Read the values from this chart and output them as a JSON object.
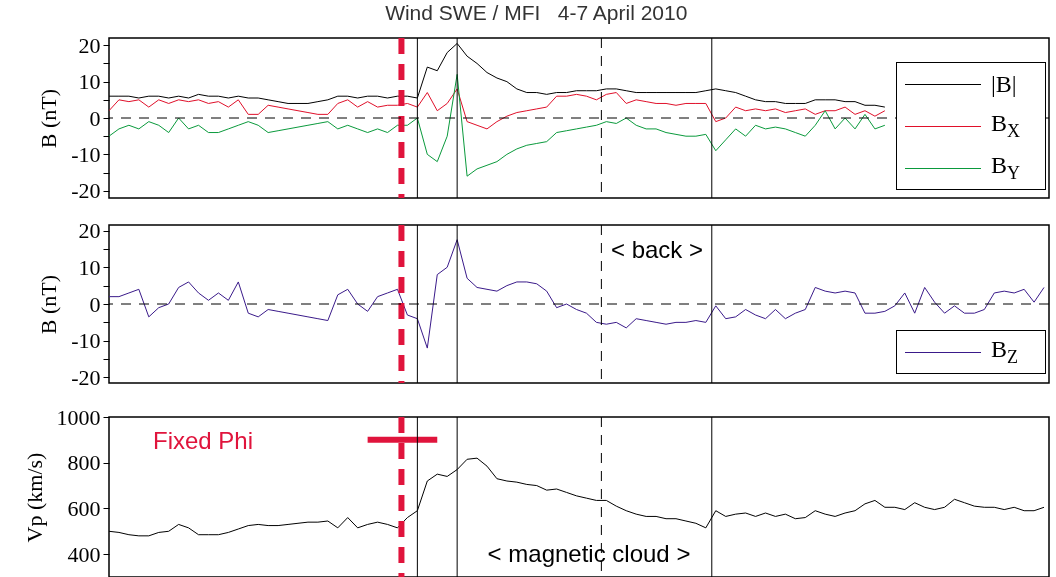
{
  "chart_data": [
    {
      "type": "line",
      "title": "Wind SWE / MFI   4-7 April 2010",
      "ylabel": "B (nT)",
      "tick_labels": "y",
      "legend": "right",
      "categories": [
        null,
        null,
        null,
        null,
        null,
        null,
        null,
        null,
        null,
        null,
        null,
        null,
        null,
        null,
        null,
        null,
        null,
        null,
        null,
        null,
        null,
        null,
        null,
        null,
        null,
        null,
        null,
        null,
        null,
        null,
        null,
        null,
        null,
        null,
        null,
        null,
        null,
        null,
        null,
        null,
        null,
        null,
        null,
        null,
        null,
        null,
        null,
        null,
        null,
        null,
        null,
        null,
        null,
        null,
        null,
        null,
        null,
        null,
        null,
        null,
        null,
        null,
        null,
        null,
        null,
        null,
        null,
        null,
        null,
        null,
        null,
        null,
        null,
        null,
        null,
        null,
        null,
        null,
        null,
        null,
        null,
        null,
        null,
        null,
        null,
        null,
        null,
        null,
        null,
        null,
        null,
        null,
        null,
        null,
        null
      ],
      "ylim": [
        -22,
        22
      ],
      "yticks": [
        -20,
        {
          "value": -15,
          "label": null
        },
        -10,
        {
          "value": -5,
          "label": null
        },
        0,
        {
          "value": 5,
          "label": null
        },
        10,
        {
          "value": 15,
          "label": null
        },
        20
      ],
      "series": [
        {
          "name": "|B|",
          "color": "#000000",
          "values": [
            6,
            6,
            6,
            5.5,
            6,
            6,
            5.5,
            6,
            5.5,
            6.5,
            6,
            6,
            5.5,
            6,
            5.5,
            5.5,
            5,
            4.5,
            4,
            4,
            4,
            4.5,
            5,
            6,
            6,
            5.5,
            6,
            6,
            5.5,
            6,
            6,
            5.5,
            14,
            13,
            18,
            20.5,
            17,
            15,
            12.5,
            11,
            10,
            8,
            7,
            7,
            6.5,
            7,
            7,
            7.5,
            7.5,
            7.5,
            8,
            8,
            7.5,
            7,
            7,
            7,
            7,
            7,
            7,
            7,
            7.5,
            8,
            7.5,
            7,
            6,
            5,
            4.5,
            4.5,
            4,
            4,
            4,
            5,
            5,
            5,
            4.5,
            4.5,
            3.5,
            3.5,
            3,
            null,
            null,
            null,
            null,
            null,
            null,
            null,
            null,
            null,
            null,
            null,
            null,
            null,
            null,
            null,
            null
          ]
        },
        {
          "name": "B$_{X}$",
          "color": "#e0102a",
          "values": [
            2,
            5,
            4.5,
            5,
            3,
            5,
            4,
            5,
            4.5,
            5,
            4,
            4.5,
            3,
            5,
            1,
            1,
            3.5,
            3,
            2.5,
            2,
            1.5,
            1,
            1,
            4,
            5,
            3,
            4.5,
            3,
            3.5,
            3.5,
            4,
            3,
            7,
            2,
            4,
            8,
            -1,
            -2,
            -3,
            -1,
            0.5,
            1.5,
            2,
            2.5,
            3,
            6,
            6,
            6.5,
            6,
            5,
            6.5,
            7,
            4,
            5,
            4.5,
            4,
            4,
            3.5,
            4,
            4,
            4,
            -1,
            0,
            3,
            2,
            2.5,
            2,
            2.5,
            1.5,
            2,
            2.5,
            1,
            2,
            2,
            3,
            1,
            2,
            0.5,
            2,
            null,
            null,
            null,
            null,
            null,
            null,
            null,
            null,
            null,
            null,
            null,
            null,
            null,
            null,
            null,
            null
          ]
        },
        {
          "name": "B$_{Y}$",
          "color": "#0a9a3c",
          "values": [
            -5,
            -3,
            -2,
            -3,
            -1,
            -2,
            -4,
            0,
            -3,
            -2,
            -4,
            -4,
            -3,
            -2,
            -1,
            -2,
            -4,
            -3.5,
            -3,
            -2.5,
            -2,
            -1.5,
            -1,
            -3,
            -2,
            -3,
            -4,
            -3,
            -4,
            -2,
            -2,
            0,
            -10,
            -12,
            -5,
            12,
            -16,
            -14,
            -13,
            -12,
            -10,
            -8.5,
            -7.5,
            -7,
            -6.5,
            -4,
            -3.5,
            -3,
            -2.5,
            -2,
            -1,
            -1.5,
            0,
            -2,
            -3,
            -3,
            -4,
            -4.5,
            -5,
            -5,
            -4.5,
            -9,
            -6,
            -3,
            -5,
            -2,
            -3,
            -2.5,
            -3,
            -4,
            -5,
            -2,
            2,
            -3,
            0,
            -3,
            1,
            -3,
            -2,
            null,
            null,
            null,
            null,
            null,
            null,
            null,
            null,
            null,
            null,
            null,
            null,
            null,
            null,
            null,
            null
          ]
        }
      ],
      "ref_lines": [
        {
          "axis": "y",
          "value": 0,
          "line_style": "dashed"
        }
      ]
    },
    {
      "type": "line",
      "ylabel": "B (nT)",
      "tick_labels": "y",
      "legend": "bottom right",
      "categories": [
        null,
        null,
        null,
        null,
        null,
        null,
        null,
        null,
        null,
        null,
        null,
        null,
        null,
        null,
        null,
        null,
        null,
        null,
        null,
        null,
        null,
        null,
        null,
        null,
        null,
        null,
        null,
        null,
        null,
        null,
        null,
        null,
        null,
        null,
        null,
        null,
        null,
        null,
        null,
        null,
        null,
        null,
        null,
        null,
        null,
        null,
        null,
        null,
        null,
        null,
        null,
        null,
        null,
        null,
        null,
        null,
        null,
        null,
        null,
        null,
        null,
        null,
        null,
        null,
        null,
        null,
        null,
        null,
        null,
        null,
        null,
        null,
        null,
        null,
        null,
        null,
        null,
        null,
        null,
        null,
        null,
        null,
        null,
        null,
        null,
        null,
        null,
        null,
        null,
        null,
        null,
        null,
        null,
        null,
        null
      ],
      "ylim": [
        -21.5,
        21.5
      ],
      "yticks": [
        -20,
        {
          "value": -15,
          "label": null
        },
        -10,
        {
          "value": -5,
          "label": null
        },
        0,
        {
          "value": 5,
          "label": null
        },
        10,
        {
          "value": 15,
          "label": null
        },
        20
      ],
      "series": [
        {
          "name": "B$_{Z}$",
          "color": "#3a1a8a",
          "values": [
            2,
            2,
            3,
            4,
            -3.5,
            -1,
            0,
            4.5,
            6,
            3,
            1,
            3,
            1,
            6,
            -2.5,
            -3.5,
            -1.5,
            -2,
            -2.5,
            -3,
            -3.5,
            -4,
            -4.5,
            2.5,
            4,
            0,
            -2,
            2,
            3,
            4,
            -3,
            -4,
            -12,
            8,
            10,
            17.5,
            7,
            4.5,
            4,
            3.5,
            5,
            6,
            6,
            5.5,
            3.5,
            -1,
            0,
            -1.5,
            -2.5,
            -5,
            -5.5,
            -5,
            -6.5,
            -4,
            -4.5,
            -5,
            -5.5,
            -5,
            -5,
            -4.5,
            -5,
            -0.5,
            -4,
            -3.5,
            -1.5,
            -3,
            -4,
            -1.5,
            -4,
            -2.5,
            -1.5,
            4.5,
            3.5,
            3,
            3.5,
            3,
            -2.5,
            -2.5,
            -2,
            -0.5,
            3,
            -2.5,
            4.5,
            0.5,
            -2.5,
            -0.5,
            -2.5,
            -2.5,
            -1.5,
            3,
            3.5,
            3,
            4,
            0.5,
            4.5
          ]
        }
      ],
      "ref_lines": [
        {
          "axis": "y",
          "value": 0,
          "line_style": "dashed"
        }
      ],
      "annotations": [
        "< back >"
      ]
    },
    {
      "type": "line",
      "ylabel": "Vp (km/s)",
      "tick_labels": "y",
      "categories": [
        null,
        null,
        null,
        null,
        null,
        null,
        null,
        null,
        null,
        null,
        null,
        null,
        null,
        null,
        null,
        null,
        null,
        null,
        null,
        null,
        null,
        null,
        null,
        null,
        null,
        null,
        null,
        null,
        null,
        null,
        null,
        null,
        null,
        null,
        null,
        null,
        null,
        null,
        null,
        null,
        null,
        null,
        null,
        null,
        null,
        null,
        null,
        null,
        null,
        null,
        null,
        null,
        null,
        null,
        null,
        null,
        null,
        null,
        null,
        null,
        null,
        null,
        null,
        null,
        null,
        null,
        null,
        null,
        null,
        null,
        null,
        null,
        null,
        null,
        null,
        null,
        null,
        null,
        null,
        null,
        null,
        null,
        null,
        null,
        null,
        null,
        null,
        null,
        null,
        null,
        null,
        null,
        null,
        null,
        null
      ],
      "ylim": [
        300,
        1000
      ],
      "yticks": [
        400,
        600,
        800,
        1000
      ],
      "series": [
        {
          "color": "#000000",
          "values": [
            500,
            495,
            485,
            480,
            480,
            495,
            500,
            530,
            515,
            485,
            485,
            485,
            495,
            510,
            525,
            530,
            525,
            525,
            530,
            535,
            540,
            540,
            545,
            515,
            560,
            515,
            530,
            540,
            530,
            515,
            560,
            590,
            720,
            750,
            740,
            770,
            815,
            820,
            785,
            730,
            720,
            715,
            705,
            700,
            680,
            685,
            670,
            655,
            645,
            635,
            635,
            610,
            590,
            575,
            565,
            565,
            555,
            555,
            545,
            535,
            515,
            590,
            565,
            575,
            580,
            565,
            580,
            565,
            575,
            555,
            560,
            590,
            575,
            565,
            580,
            590,
            620,
            635,
            605,
            605,
            595,
            625,
            605,
            595,
            605,
            640,
            625,
            610,
            605,
            605,
            595,
            605,
            590,
            590,
            605
          ]
        },
        {
          "color": "#e0143c",
          "values": [
            null,
            null,
            null,
            null,
            null,
            null,
            null,
            null,
            null,
            null,
            null,
            null,
            null,
            null,
            null,
            null,
            null,
            null,
            null,
            null,
            null,
            null,
            null,
            null,
            null,
            null,
            900,
            900,
            900,
            900,
            900,
            900,
            900,
            900,
            null,
            null,
            null,
            null,
            null,
            null,
            null,
            null,
            null,
            null,
            null,
            null,
            null,
            null,
            null,
            null,
            null,
            null,
            null,
            null,
            null,
            null,
            null,
            null,
            null,
            null,
            null,
            null,
            null,
            null,
            null,
            null,
            null,
            null,
            null,
            null,
            null,
            null,
            null,
            null,
            null,
            null,
            null,
            null,
            null,
            null,
            null,
            null,
            null,
            null,
            null,
            null,
            null,
            null,
            null,
            null,
            null,
            null,
            null,
            null,
            null
          ]
        }
      ],
      "annotations": [
        "Fixed Phi",
        "< magnetic cloud >"
      ]
    }
  ]
}
